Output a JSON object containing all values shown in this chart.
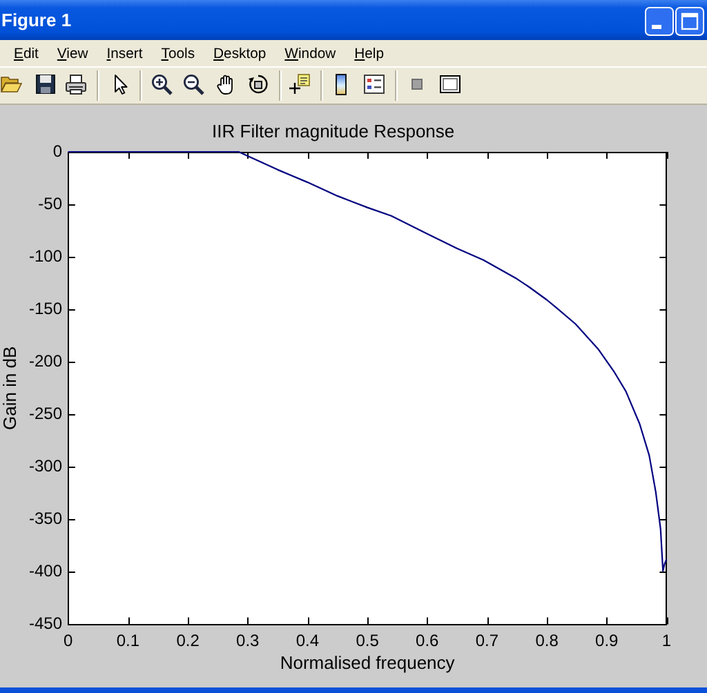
{
  "chart_data": {
    "type": "line",
    "title": "IIR Filter magnitude Response",
    "xlabel": "Normalised frequency",
    "ylabel": "Gain in dB",
    "annotations": [
      "Figure 1",
      "Edit",
      "View",
      "Insert",
      "Tools",
      "Desktop",
      "Window",
      "Help"
    ],
    "x": [
      0,
      0.1,
      0.2,
      0.285,
      0.3,
      0.35,
      0.4,
      0.45,
      0.5,
      0.54,
      0.6,
      0.65,
      0.694,
      0.75,
      0.771,
      0.8,
      0.817,
      0.848,
      0.886,
      0.913,
      0.932,
      0.955,
      0.971,
      0.982,
      0.99,
      0.994,
      0.997,
      1
    ],
    "values": [
      0,
      0,
      0,
      0,
      -4,
      -17,
      -29,
      -42,
      -53,
      -61,
      -78,
      -92,
      -103,
      -121,
      -129,
      -141,
      -149,
      -164,
      -188,
      -210,
      -228,
      -259,
      -289,
      -324,
      -359,
      -399,
      -392,
      -388
    ],
    "color": "#000080",
    "xlim": [
      0,
      1
    ],
    "ylim": [
      -450,
      0
    ],
    "xticks": [
      0,
      0.1,
      0.2,
      0.3,
      0.4,
      0.5,
      0.6,
      0.7,
      0.8,
      0.9,
      1
    ],
    "yticks": [
      0,
      -50,
      -100,
      -150,
      -200,
      -250,
      -300,
      -350,
      -400,
      -450
    ],
    "grid": false,
    "legend": false,
    "marker": "none",
    "line_style": "solid"
  }
}
